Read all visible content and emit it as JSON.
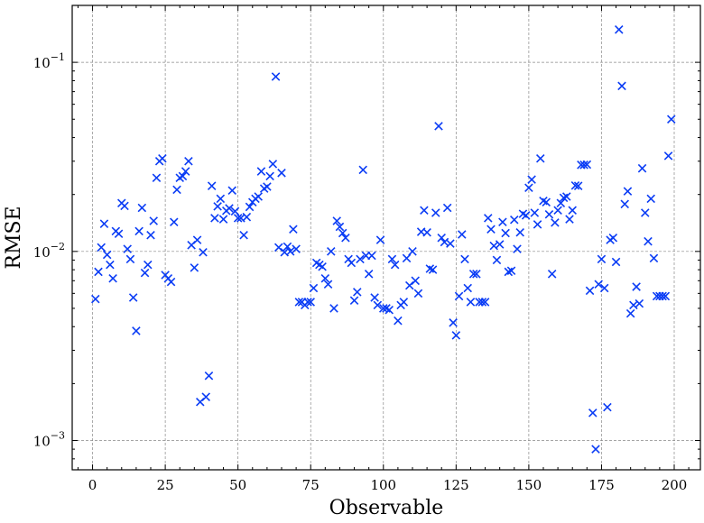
{
  "chart_data": {
    "type": "scatter",
    "xlabel": "Observable",
    "ylabel": "RMSE",
    "xlim": [
      -7,
      209
    ],
    "ylim": [
      0.0007,
      0.2
    ],
    "yscale": "log",
    "grid": true,
    "marker": "x",
    "color": "#0a3cf5",
    "xticks": [
      0,
      25,
      50,
      75,
      100,
      125,
      150,
      175,
      200
    ],
    "yticks": [
      {
        "value": 0.001,
        "base": "10",
        "exp": "−3"
      },
      {
        "value": 0.01,
        "base": "10",
        "exp": "−2"
      },
      {
        "value": 0.1,
        "base": "10",
        "exp": "−1"
      }
    ],
    "series": [
      {
        "points": [
          [
            1,
            0.0056
          ],
          [
            2,
            0.0078
          ],
          [
            3,
            0.0105
          ],
          [
            4,
            0.014
          ],
          [
            5,
            0.0096
          ],
          [
            6,
            0.0085
          ],
          [
            7,
            0.0072
          ],
          [
            8,
            0.0128
          ],
          [
            9,
            0.0124
          ],
          [
            10,
            0.018
          ],
          [
            11,
            0.0174
          ],
          [
            12,
            0.0103
          ],
          [
            13,
            0.0091
          ],
          [
            14,
            0.0057
          ],
          [
            15,
            0.0038
          ],
          [
            16,
            0.0128
          ],
          [
            17,
            0.017
          ],
          [
            18,
            0.0077
          ],
          [
            19,
            0.0085
          ],
          [
            20,
            0.0122
          ],
          [
            21,
            0.0145
          ],
          [
            22,
            0.0245
          ],
          [
            23,
            0.03
          ],
          [
            24,
            0.031
          ],
          [
            25,
            0.0075
          ],
          [
            26,
            0.0072
          ],
          [
            27,
            0.0069
          ],
          [
            28,
            0.0143
          ],
          [
            29,
            0.0212
          ],
          [
            30,
            0.0245
          ],
          [
            31,
            0.025
          ],
          [
            32,
            0.0265
          ],
          [
            33,
            0.03
          ],
          [
            34,
            0.0108
          ],
          [
            35,
            0.0082
          ],
          [
            36,
            0.0115
          ],
          [
            37,
            0.0016
          ],
          [
            38,
            0.0099
          ],
          [
            39,
            0.0017
          ],
          [
            40,
            0.0022
          ],
          [
            41,
            0.0222
          ],
          [
            42,
            0.015
          ],
          [
            43,
            0.0173
          ],
          [
            44,
            0.019
          ],
          [
            45,
            0.0148
          ],
          [
            46,
            0.0164
          ],
          [
            47,
            0.0169
          ],
          [
            48,
            0.021
          ],
          [
            49,
            0.0163
          ],
          [
            50,
            0.015
          ],
          [
            51,
            0.015
          ],
          [
            52,
            0.0122
          ],
          [
            53,
            0.0152
          ],
          [
            54,
            0.0172
          ],
          [
            55,
            0.0182
          ],
          [
            56,
            0.019
          ],
          [
            57,
            0.0195
          ],
          [
            58,
            0.0265
          ],
          [
            59,
            0.0215
          ],
          [
            60,
            0.022
          ],
          [
            61,
            0.025
          ],
          [
            62,
            0.029
          ],
          [
            63,
            0.084
          ],
          [
            64,
            0.0105
          ],
          [
            65,
            0.026
          ],
          [
            66,
            0.0099
          ],
          [
            67,
            0.0106
          ],
          [
            68,
            0.01
          ],
          [
            69,
            0.0131
          ],
          [
            70,
            0.0103
          ],
          [
            71,
            0.0054
          ],
          [
            72,
            0.0054
          ],
          [
            73,
            0.0052
          ],
          [
            74,
            0.0054
          ],
          [
            75,
            0.0054
          ],
          [
            76,
            0.0064
          ],
          [
            77,
            0.0087
          ],
          [
            78,
            0.0085
          ],
          [
            79,
            0.0083
          ],
          [
            80,
            0.0072
          ],
          [
            81,
            0.0067
          ],
          [
            82,
            0.01
          ],
          [
            83,
            0.005
          ],
          [
            84,
            0.0145
          ],
          [
            85,
            0.0135
          ],
          [
            86,
            0.0125
          ],
          [
            87,
            0.0118
          ],
          [
            88,
            0.0091
          ],
          [
            89,
            0.0087
          ],
          [
            90,
            0.0055
          ],
          [
            91,
            0.0061
          ],
          [
            92,
            0.0091
          ],
          [
            93,
            0.027
          ],
          [
            94,
            0.0095
          ],
          [
            95,
            0.0076
          ],
          [
            96,
            0.0095
          ],
          [
            97,
            0.0057
          ],
          [
            98,
            0.0052
          ],
          [
            99,
            0.0115
          ],
          [
            100,
            0.005
          ],
          [
            101,
            0.005
          ],
          [
            102,
            0.0049
          ],
          [
            103,
            0.0091
          ],
          [
            104,
            0.0085
          ],
          [
            105,
            0.0043
          ],
          [
            106,
            0.0052
          ],
          [
            107,
            0.0054
          ],
          [
            108,
            0.0092
          ],
          [
            109,
            0.0066
          ],
          [
            110,
            0.01
          ],
          [
            111,
            0.007
          ],
          [
            112,
            0.006
          ],
          [
            113,
            0.0127
          ],
          [
            114,
            0.0165
          ],
          [
            115,
            0.0126
          ],
          [
            116,
            0.0081
          ],
          [
            117,
            0.008
          ],
          [
            118,
            0.016
          ],
          [
            119,
            0.046
          ],
          [
            120,
            0.0118
          ],
          [
            121,
            0.0112
          ],
          [
            122,
            0.017
          ],
          [
            123,
            0.011
          ],
          [
            124,
            0.0042
          ],
          [
            125,
            0.0036
          ],
          [
            126,
            0.0058
          ],
          [
            127,
            0.0123
          ],
          [
            128,
            0.0091
          ],
          [
            129,
            0.0064
          ],
          [
            130,
            0.0054
          ],
          [
            131,
            0.0076
          ],
          [
            132,
            0.0076
          ],
          [
            133,
            0.0054
          ],
          [
            134,
            0.0054
          ],
          [
            135,
            0.0054
          ],
          [
            136,
            0.015
          ],
          [
            137,
            0.0131
          ],
          [
            138,
            0.0107
          ],
          [
            139,
            0.009
          ],
          [
            140,
            0.0109
          ],
          [
            141,
            0.0143
          ],
          [
            142,
            0.0125
          ],
          [
            143,
            0.0078
          ],
          [
            144,
            0.0079
          ],
          [
            145,
            0.0147
          ],
          [
            146,
            0.0103
          ],
          [
            147,
            0.0126
          ],
          [
            148,
            0.0158
          ],
          [
            149,
            0.0155
          ],
          [
            150,
            0.0217
          ],
          [
            151,
            0.024
          ],
          [
            152,
            0.016
          ],
          [
            153,
            0.0139
          ],
          [
            154,
            0.031
          ],
          [
            155,
            0.0185
          ],
          [
            156,
            0.0182
          ],
          [
            157,
            0.0157
          ],
          [
            158,
            0.0076
          ],
          [
            159,
            0.0142
          ],
          [
            160,
            0.0165
          ],
          [
            161,
            0.018
          ],
          [
            162,
            0.0192
          ],
          [
            163,
            0.0195
          ],
          [
            164,
            0.0148
          ],
          [
            165,
            0.0165
          ],
          [
            166,
            0.0223
          ],
          [
            167,
            0.0222
          ],
          [
            168,
            0.0287
          ],
          [
            169,
            0.0287
          ],
          [
            170,
            0.0288
          ],
          [
            171,
            0.0062
          ],
          [
            172,
            0.0014
          ],
          [
            173,
            0.0009
          ],
          [
            174,
            0.0067
          ],
          [
            175,
            0.0091
          ],
          [
            176,
            0.0064
          ],
          [
            177,
            0.0015
          ],
          [
            178,
            0.0115
          ],
          [
            179,
            0.0118
          ],
          [
            180,
            0.0088
          ],
          [
            181,
            0.149
          ],
          [
            182,
            0.075
          ],
          [
            183,
            0.0178
          ],
          [
            184,
            0.0208
          ],
          [
            185,
            0.0047
          ],
          [
            186,
            0.0052
          ],
          [
            187,
            0.0065
          ],
          [
            188,
            0.0053
          ],
          [
            189,
            0.0275
          ],
          [
            190,
            0.016
          ],
          [
            191,
            0.0113
          ],
          [
            192,
            0.019
          ],
          [
            193,
            0.0092
          ],
          [
            194,
            0.0058
          ],
          [
            195,
            0.0058
          ],
          [
            196,
            0.0058
          ],
          [
            197,
            0.0058
          ],
          [
            198,
            0.032
          ],
          [
            199,
            0.05
          ]
        ]
      }
    ]
  }
}
